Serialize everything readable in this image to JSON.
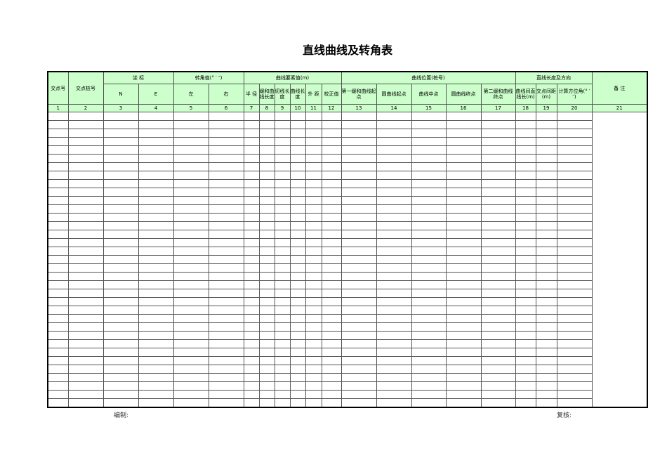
{
  "title": "直线曲线及转角表",
  "header": {
    "jd_no": "交点号",
    "jd_station": "交点桩号",
    "coord": "坐    标",
    "n": "N",
    "e": "E",
    "angle": "转角值(°  ′  ″)",
    "left": "左",
    "right": "右",
    "elements": "曲线要素值(m)",
    "radius": "半 径",
    "spiral_len": "缓和曲线长度",
    "tangent_len": "切线长度",
    "curve_len": "曲线长度",
    "external": "外 距",
    "correction": "校正值",
    "position": "曲线位置(桩号)",
    "zh": "第一缓和曲线起点",
    "hy": "圆曲线起点",
    "qz": "曲线中点",
    "yh": "圆曲线终点",
    "hz": "第二缓和曲线终点",
    "straight": "直线长度及方向",
    "straight_len": "曲线间直线长(m)",
    "jd_dist": "交点间距(m)",
    "azimuth": "计算方位角(°  ′  ″)",
    "remark": "备        注"
  },
  "col_numbers": [
    "1",
    "2",
    "3",
    "4",
    "5",
    "6",
    "7",
    "8",
    "9",
    "10",
    "11",
    "12",
    "13",
    "14",
    "15",
    "16",
    "17",
    "18",
    "19",
    "20",
    "21"
  ],
  "footer": {
    "prepared": "编制:",
    "reviewed": "复核:"
  }
}
